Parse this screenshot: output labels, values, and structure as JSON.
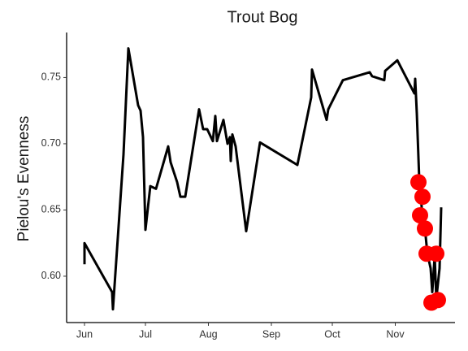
{
  "chart_data": {
    "type": "line",
    "title": "Trout Bog",
    "y_label": "Pielou's Evenness",
    "color": "#000000",
    "x": [
      152,
      152,
      165.6,
      166,
      171.2,
      173.6,
      178.4,
      179.6,
      180.8,
      182,
      184.4,
      187.2,
      193.2,
      194.4,
      197.6,
      199.2,
      201.6,
      208.4,
      210.4,
      212.4,
      215.2,
      216.4,
      217.2,
      220.4,
      222.4,
      223.6,
      224,
      224.8,
      226.4,
      231.6,
      238.4,
      256.8,
      263.6,
      264,
      271.2,
      272,
      279.2,
      292.4,
      293.6,
      299.6,
      300,
      306,
      314.4,
      314.8,
      315.6,
      316.8,
      317.6,
      318.4,
      319.6,
      320.8,
      322.4,
      323.2,
      324.4,
      325.2,
      326.8,
      327.6
    ],
    "values": [
      0.609,
      0.625,
      0.588,
      0.575,
      0.692,
      0.772,
      0.729,
      0.725,
      0.705,
      0.635,
      0.668,
      0.666,
      0.698,
      0.686,
      0.671,
      0.66,
      0.66,
      0.726,
      0.711,
      0.711,
      0.702,
      0.721,
      0.702,
      0.718,
      0.7,
      0.705,
      0.687,
      0.707,
      0.698,
      0.634,
      0.701,
      0.684,
      0.735,
      0.756,
      0.718,
      0.726,
      0.748,
      0.754,
      0.751,
      0.748,
      0.755,
      0.763,
      0.738,
      0.749,
      0.723,
      0.673,
      0.66,
      0.644,
      0.636,
      0.617,
      0.606,
      0.588,
      0.615,
      0.583,
      0.606,
      0.652
    ],
    "highlight": {
      "color": "#ff0000",
      "x": [
        316.4,
        318.4,
        317.2,
        319.6,
        320.4,
        325.2,
        322.8,
        326
      ],
      "values": [
        0.671,
        0.66,
        0.646,
        0.636,
        0.617,
        0.617,
        0.58,
        0.582
      ]
    },
    "xlim": [
      143.2,
      334.4
    ],
    "xticks": [
      {
        "value": 152,
        "label": "Jun"
      },
      {
        "value": 182,
        "label": "Jul"
      },
      {
        "value": 213,
        "label": "Aug"
      },
      {
        "value": 244,
        "label": "Sep"
      },
      {
        "value": 274,
        "label": "Oct"
      },
      {
        "value": 305,
        "label": "Nov"
      }
    ],
    "ylim": [
      0.565,
      0.784
    ],
    "yticks": [
      {
        "value": 0.6,
        "label": "0.60"
      },
      {
        "value": 0.65,
        "label": "0.65"
      },
      {
        "value": 0.7,
        "label": "0.70"
      },
      {
        "value": 0.75,
        "label": "0.75"
      }
    ],
    "grid": false
  }
}
